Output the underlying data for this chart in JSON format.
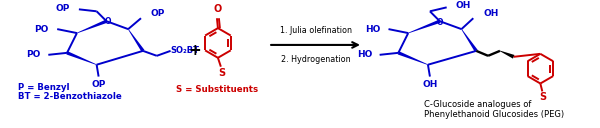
{
  "bg_color": "#ffffff",
  "blue": "#0000cc",
  "red": "#cc0000",
  "black": "#000000",
  "label_p": "P = Benzyl",
  "label_bt": "BT = 2-Benzothiazole",
  "label_s": "S = Substituents",
  "step1": "1. Julia olefination",
  "step2": "2. Hydrogenation",
  "product_label1": "C-Glucoside analogues of",
  "product_label2": "Phenylethanoid Glucosides (PEG)",
  "figsize": [
    6.0,
    1.28
  ],
  "dpi": 100
}
